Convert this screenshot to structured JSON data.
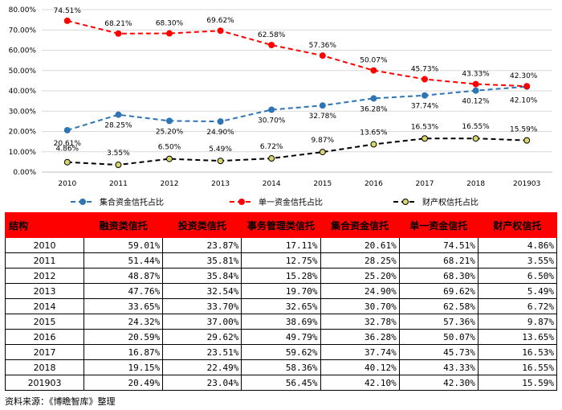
{
  "chart_data": {
    "type": "line",
    "categories": [
      "2010",
      "2011",
      "2012",
      "2013",
      "2014",
      "2015",
      "2016",
      "2017",
      "2018",
      "201903"
    ],
    "ylim": [
      0,
      80
    ],
    "yticks": [
      0,
      10,
      20,
      30,
      40,
      50,
      60,
      70,
      80
    ],
    "ytick_labels": [
      "0.00%",
      "10.00%",
      "20.00%",
      "30.00%",
      "40.00%",
      "50.00%",
      "60.00%",
      "70.00%",
      "80.00%"
    ],
    "series": [
      {
        "name": "集合资金信托占比",
        "color": "#2e75b6",
        "values": [
          20.61,
          28.25,
          25.2,
          24.9,
          30.7,
          32.78,
          36.28,
          37.74,
          40.12,
          42.1
        ],
        "labels": [
          "20.61%",
          "28.25%",
          "25.20%",
          "24.90%",
          "30.70%",
          "32.78%",
          "36.28%",
          "37.74%",
          "40.12%",
          "42.10%"
        ]
      },
      {
        "name": "单一资金信托占比",
        "color": "#ff0000",
        "values": [
          74.51,
          68.21,
          68.3,
          69.62,
          62.58,
          57.36,
          50.07,
          45.73,
          43.33,
          42.3
        ],
        "labels": [
          "74.51%",
          "68.21%",
          "68.30%",
          "69.62%",
          "62.58%",
          "57.36%",
          "50.07%",
          "45.73%",
          "43.33%",
          "42.30%"
        ]
      },
      {
        "name": "财产权信托占比",
        "color": "#000000",
        "values": [
          4.86,
          3.55,
          6.5,
          5.49,
          6.72,
          9.87,
          13.65,
          16.53,
          16.55,
          15.59
        ],
        "labels": [
          "4.86%",
          "3.55%",
          "6.50%",
          "5.49%",
          "6.72%",
          "9.87%",
          "13.65%",
          "16.53%",
          "16.55%",
          "15.59%"
        ]
      }
    ]
  },
  "table": {
    "headers": [
      "结构",
      "融资类信托",
      "投资类信托",
      "事务管理类信托",
      "集合资金信托",
      "单一资金信托",
      "财产权信托"
    ],
    "rows": [
      [
        "2010",
        "59.01%",
        "23.87%",
        "17.11%",
        "20.61%",
        "74.51%",
        "4.86%"
      ],
      [
        "2011",
        "51.44%",
        "35.81%",
        "12.75%",
        "28.25%",
        "68.21%",
        "3.55%"
      ],
      [
        "2012",
        "48.87%",
        "35.84%",
        "15.28%",
        "25.20%",
        "68.30%",
        "6.50%"
      ],
      [
        "2013",
        "47.76%",
        "32.54%",
        "19.70%",
        "24.90%",
        "69.62%",
        "5.49%"
      ],
      [
        "2014",
        "33.65%",
        "33.70%",
        "32.65%",
        "30.70%",
        "62.58%",
        "6.72%"
      ],
      [
        "2015",
        "24.32%",
        "37.00%",
        "38.69%",
        "32.78%",
        "57.36%",
        "9.87%"
      ],
      [
        "2016",
        "20.59%",
        "29.62%",
        "49.79%",
        "36.28%",
        "50.07%",
        "13.65%"
      ],
      [
        "2017",
        "16.87%",
        "23.51%",
        "59.62%",
        "37.74%",
        "45.73%",
        "16.53%"
      ],
      [
        "2018",
        "19.15%",
        "22.49%",
        "58.36%",
        "40.12%",
        "43.33%",
        "16.55%"
      ],
      [
        "201903",
        "20.49%",
        "23.04%",
        "56.45%",
        "42.10%",
        "42.30%",
        "15.59%"
      ]
    ]
  },
  "source": "资料来源：《博瞻智库》整理"
}
